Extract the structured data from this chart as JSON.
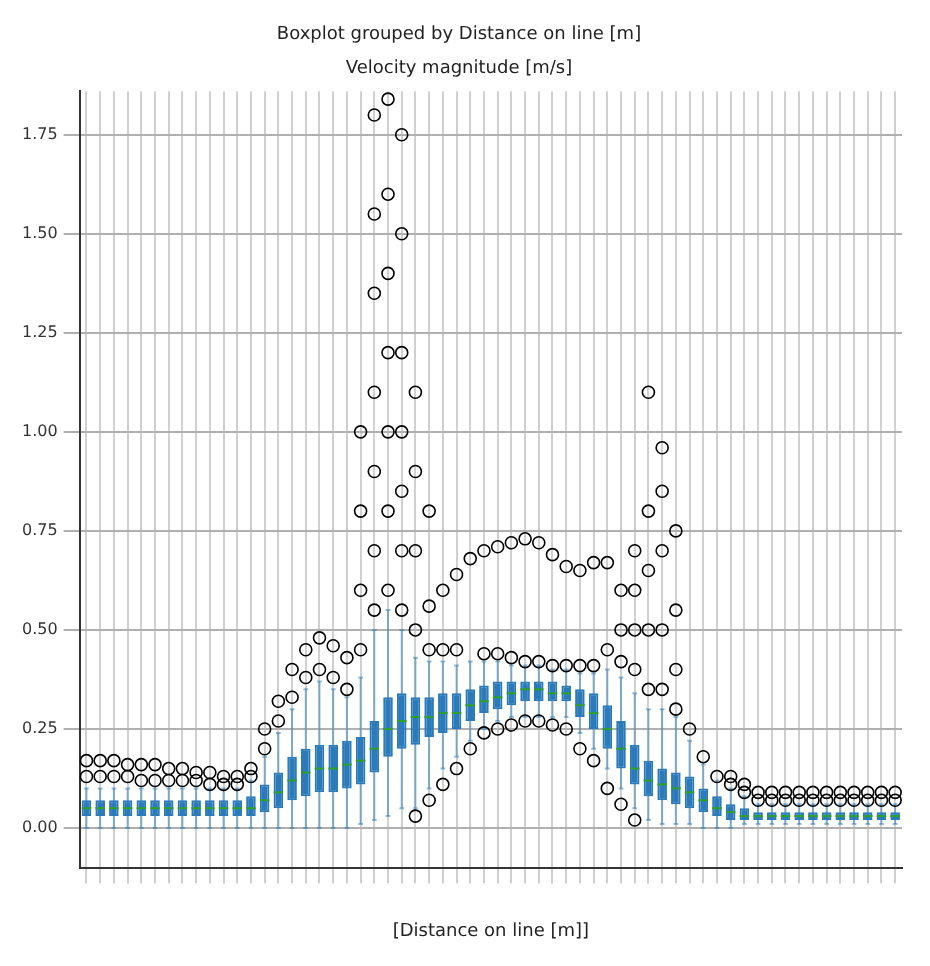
{
  "chart_data": {
    "type": "box",
    "title": "Boxplot grouped by Distance on line [m]",
    "subtitle": "Velocity magnitude [m/s]",
    "xlabel": "[Distance on line [m]]",
    "categories": [
      null,
      null,
      null,
      null,
      null,
      null,
      null,
      null,
      null,
      null,
      null,
      null,
      null,
      null,
      null,
      null,
      null,
      null,
      null,
      null,
      null,
      null,
      null,
      null,
      null,
      null,
      null,
      null,
      null,
      null,
      null,
      null,
      null,
      null,
      null,
      null,
      null,
      null,
      null,
      null,
      null,
      null,
      null,
      null,
      null,
      null,
      null,
      null,
      null,
      null,
      null,
      null,
      null,
      null,
      null,
      null,
      null,
      null,
      null,
      null
    ],
    "ylim": [
      -0.1,
      1.86
    ],
    "yticks": [
      {
        "value": 0,
        "label": "0.00"
      },
      {
        "value": 0.25,
        "label": "0.25"
      },
      {
        "value": 0.5,
        "label": "0.50"
      },
      {
        "value": 0.75,
        "label": "0.75"
      },
      {
        "value": 1,
        "label": "1.00"
      },
      {
        "value": 1.25,
        "label": "1.25"
      },
      {
        "value": 1.5,
        "label": "1.50"
      },
      {
        "value": 1.75,
        "label": "1.75"
      }
    ],
    "grid": true,
    "legend": false,
    "marker": "circle",
    "series": [
      {
        "color": "#2b7bba",
        "boxes": [
          {
            "low": 0,
            "q1": 0.03,
            "median": 0.05,
            "q3": 0.07,
            "high": 0.1,
            "outliers": [
              0.13,
              0.17
            ]
          },
          {
            "low": 0,
            "q1": 0.03,
            "median": 0.05,
            "q3": 0.07,
            "high": 0.1,
            "outliers": [
              0.13,
              0.17
            ]
          },
          {
            "low": 0,
            "q1": 0.03,
            "median": 0.05,
            "q3": 0.07,
            "high": 0.1,
            "outliers": [
              0.13,
              0.17
            ]
          },
          {
            "low": 0,
            "q1": 0.03,
            "median": 0.05,
            "q3": 0.07,
            "high": 0.1,
            "outliers": [
              0.13,
              0.16
            ]
          },
          {
            "low": 0,
            "q1": 0.03,
            "median": 0.05,
            "q3": 0.07,
            "high": 0.1,
            "outliers": [
              0.12,
              0.16
            ]
          },
          {
            "low": 0,
            "q1": 0.03,
            "median": 0.05,
            "q3": 0.07,
            "high": 0.1,
            "outliers": [
              0.12,
              0.16
            ]
          },
          {
            "low": 0,
            "q1": 0.03,
            "median": 0.05,
            "q3": 0.07,
            "high": 0.1,
            "outliers": [
              0.12,
              0.15
            ]
          },
          {
            "low": 0,
            "q1": 0.03,
            "median": 0.05,
            "q3": 0.07,
            "high": 0.1,
            "outliers": [
              0.12,
              0.15
            ]
          },
          {
            "low": 0,
            "q1": 0.03,
            "median": 0.05,
            "q3": 0.07,
            "high": 0.1,
            "outliers": [
              0.12,
              0.14
            ]
          },
          {
            "low": 0,
            "q1": 0.03,
            "median": 0.05,
            "q3": 0.07,
            "high": 0.1,
            "outliers": [
              0.11,
              0.14
            ]
          },
          {
            "low": 0,
            "q1": 0.03,
            "median": 0.05,
            "q3": 0.07,
            "high": 0.1,
            "outliers": [
              0.11,
              0.13
            ]
          },
          {
            "low": 0,
            "q1": 0.03,
            "median": 0.05,
            "q3": 0.07,
            "high": 0.1,
            "outliers": [
              0.11,
              0.13
            ]
          },
          {
            "low": 0,
            "q1": 0.03,
            "median": 0.05,
            "q3": 0.08,
            "high": 0.12,
            "outliers": [
              0.13,
              0.15
            ]
          },
          {
            "low": 0,
            "q1": 0.04,
            "median": 0.07,
            "q3": 0.11,
            "high": 0.18,
            "outliers": [
              0.2,
              0.25
            ]
          },
          {
            "low": 0,
            "q1": 0.05,
            "median": 0.09,
            "q3": 0.14,
            "high": 0.24,
            "outliers": [
              0.27,
              0.32
            ]
          },
          {
            "low": 0,
            "q1": 0.07,
            "median": 0.12,
            "q3": 0.18,
            "high": 0.3,
            "outliers": [
              0.33,
              0.4
            ]
          },
          {
            "low": 0,
            "q1": 0.08,
            "median": 0.14,
            "q3": 0.2,
            "high": 0.35,
            "outliers": [
              0.38,
              0.45
            ]
          },
          {
            "low": 0,
            "q1": 0.09,
            "median": 0.15,
            "q3": 0.21,
            "high": 0.37,
            "outliers": [
              0.4,
              0.48
            ]
          },
          {
            "low": 0,
            "q1": 0.09,
            "median": 0.15,
            "q3": 0.21,
            "high": 0.35,
            "outliers": [
              0.38,
              0.46
            ]
          },
          {
            "low": 0,
            "q1": 0.1,
            "median": 0.16,
            "q3": 0.22,
            "high": 0.33,
            "outliers": [
              0.35,
              0.43
            ]
          },
          {
            "low": 0.01,
            "q1": 0.11,
            "median": 0.17,
            "q3": 0.23,
            "high": 0.38,
            "outliers": [
              0.45,
              0.6,
              0.8,
              1.0
            ]
          },
          {
            "low": 0.02,
            "q1": 0.14,
            "median": 0.2,
            "q3": 0.27,
            "high": 0.5,
            "outliers": [
              0.55,
              0.7,
              0.9,
              1.1,
              1.35,
              1.55,
              1.8
            ]
          },
          {
            "low": 0.03,
            "q1": 0.18,
            "median": 0.25,
            "q3": 0.33,
            "high": 0.55,
            "outliers": [
              0.6,
              0.8,
              1.0,
              1.2,
              1.4,
              1.6,
              1.84
            ]
          },
          {
            "low": 0.05,
            "q1": 0.2,
            "median": 0.27,
            "q3": 0.34,
            "high": 0.5,
            "outliers": [
              0.55,
              0.7,
              0.85,
              1.0,
              1.2,
              1.5,
              1.75
            ]
          },
          {
            "low": 0.05,
            "q1": 0.21,
            "median": 0.28,
            "q3": 0.33,
            "high": 0.43,
            "outliers": [
              0.03,
              0.5,
              0.7,
              0.9,
              1.1
            ]
          },
          {
            "low": 0.1,
            "q1": 0.23,
            "median": 0.28,
            "q3": 0.33,
            "high": 0.42,
            "outliers": [
              0.07,
              0.45,
              0.56,
              0.8
            ]
          },
          {
            "low": 0.15,
            "q1": 0.24,
            "median": 0.29,
            "q3": 0.34,
            "high": 0.42,
            "outliers": [
              0.11,
              0.45,
              0.6
            ]
          },
          {
            "low": 0.18,
            "q1": 0.25,
            "median": 0.29,
            "q3": 0.34,
            "high": 0.41,
            "outliers": [
              0.15,
              0.45,
              0.64
            ]
          },
          {
            "low": 0.22,
            "q1": 0.27,
            "median": 0.31,
            "q3": 0.35,
            "high": 0.42,
            "outliers": [
              0.2,
              0.68
            ]
          },
          {
            "low": 0.25,
            "q1": 0.29,
            "median": 0.32,
            "q3": 0.36,
            "high": 0.42,
            "outliers": [
              0.24,
              0.44,
              0.7
            ]
          },
          {
            "low": 0.27,
            "q1": 0.3,
            "median": 0.33,
            "q3": 0.37,
            "high": 0.42,
            "outliers": [
              0.25,
              0.44,
              0.71
            ]
          },
          {
            "low": 0.28,
            "q1": 0.31,
            "median": 0.34,
            "q3": 0.37,
            "high": 0.41,
            "outliers": [
              0.26,
              0.43,
              0.72
            ]
          },
          {
            "low": 0.28,
            "q1": 0.32,
            "median": 0.35,
            "q3": 0.37,
            "high": 0.41,
            "outliers": [
              0.27,
              0.42,
              0.73
            ]
          },
          {
            "low": 0.28,
            "q1": 0.32,
            "median": 0.35,
            "q3": 0.37,
            "high": 0.41,
            "outliers": [
              0.27,
              0.42,
              0.72
            ]
          },
          {
            "low": 0.28,
            "q1": 0.32,
            "median": 0.34,
            "q3": 0.37,
            "high": 0.4,
            "outliers": [
              0.26,
              0.41,
              0.69
            ]
          },
          {
            "low": 0.28,
            "q1": 0.32,
            "median": 0.34,
            "q3": 0.36,
            "high": 0.4,
            "outliers": [
              0.25,
              0.41,
              0.66
            ]
          },
          {
            "low": 0.24,
            "q1": 0.28,
            "median": 0.31,
            "q3": 0.35,
            "high": 0.39,
            "outliers": [
              0.2,
              0.41,
              0.65
            ]
          },
          {
            "low": 0.2,
            "q1": 0.25,
            "median": 0.29,
            "q3": 0.34,
            "high": 0.39,
            "outliers": [
              0.17,
              0.41,
              0.67
            ]
          },
          {
            "low": 0.15,
            "q1": 0.2,
            "median": 0.25,
            "q3": 0.31,
            "high": 0.4,
            "outliers": [
              0.1,
              0.45,
              0.67
            ]
          },
          {
            "low": 0.1,
            "q1": 0.15,
            "median": 0.2,
            "q3": 0.27,
            "high": 0.38,
            "outliers": [
              0.06,
              0.42,
              0.5,
              0.6
            ]
          },
          {
            "low": 0.05,
            "q1": 0.11,
            "median": 0.15,
            "q3": 0.21,
            "high": 0.34,
            "outliers": [
              0.02,
              0.4,
              0.5,
              0.6,
              0.7
            ]
          },
          {
            "low": 0.02,
            "q1": 0.08,
            "median": 0.12,
            "q3": 0.17,
            "high": 0.3,
            "outliers": [
              0.35,
              0.5,
              0.65,
              0.8,
              1.1
            ]
          },
          {
            "low": 0.01,
            "q1": 0.07,
            "median": 0.11,
            "q3": 0.15,
            "high": 0.3,
            "outliers": [
              0.35,
              0.5,
              0.7,
              0.85,
              0.96
            ]
          },
          {
            "low": 0.01,
            "q1": 0.06,
            "median": 0.1,
            "q3": 0.14,
            "high": 0.28,
            "outliers": [
              0.3,
              0.4,
              0.55,
              0.75
            ]
          },
          {
            "low": 0.01,
            "q1": 0.05,
            "median": 0.09,
            "q3": 0.13,
            "high": 0.22,
            "outliers": [
              0.25
            ]
          },
          {
            "low": 0,
            "q1": 0.04,
            "median": 0.07,
            "q3": 0.1,
            "high": 0.16,
            "outliers": [
              0.18
            ]
          },
          {
            "low": 0,
            "q1": 0.03,
            "median": 0.05,
            "q3": 0.08,
            "high": 0.12,
            "outliers": [
              0.13
            ]
          },
          {
            "low": 0,
            "q1": 0.02,
            "median": 0.04,
            "q3": 0.06,
            "high": 0.1,
            "outliers": [
              0.11,
              0.13
            ]
          },
          {
            "low": 0.01,
            "q1": 0.02,
            "median": 0.03,
            "q3": 0.05,
            "high": 0.08,
            "outliers": [
              0.09,
              0.11
            ]
          },
          {
            "low": 0.01,
            "q1": 0.02,
            "median": 0.03,
            "q3": 0.04,
            "high": 0.06,
            "outliers": [
              0.07,
              0.09
            ]
          },
          {
            "low": 0.01,
            "q1": 0.02,
            "median": 0.03,
            "q3": 0.04,
            "high": 0.06,
            "outliers": [
              0.07,
              0.09
            ]
          },
          {
            "low": 0.01,
            "q1": 0.02,
            "median": 0.03,
            "q3": 0.04,
            "high": 0.06,
            "outliers": [
              0.07,
              0.09
            ]
          },
          {
            "low": 0.01,
            "q1": 0.02,
            "median": 0.03,
            "q3": 0.04,
            "high": 0.06,
            "outliers": [
              0.07,
              0.09
            ]
          },
          {
            "low": 0.01,
            "q1": 0.02,
            "median": 0.03,
            "q3": 0.04,
            "high": 0.06,
            "outliers": [
              0.07,
              0.09
            ]
          },
          {
            "low": 0.01,
            "q1": 0.02,
            "median": 0.03,
            "q3": 0.04,
            "high": 0.06,
            "outliers": [
              0.07,
              0.09
            ]
          },
          {
            "low": 0.01,
            "q1": 0.02,
            "median": 0.03,
            "q3": 0.04,
            "high": 0.06,
            "outliers": [
              0.07,
              0.09
            ]
          },
          {
            "low": 0.01,
            "q1": 0.02,
            "median": 0.03,
            "q3": 0.04,
            "high": 0.06,
            "outliers": [
              0.07,
              0.09
            ]
          },
          {
            "low": 0.01,
            "q1": 0.02,
            "median": 0.03,
            "q3": 0.04,
            "high": 0.06,
            "outliers": [
              0.07,
              0.09
            ]
          },
          {
            "low": 0.01,
            "q1": 0.02,
            "median": 0.03,
            "q3": 0.04,
            "high": 0.06,
            "outliers": [
              0.07,
              0.09
            ]
          },
          {
            "low": 0.01,
            "q1": 0.02,
            "median": 0.03,
            "q3": 0.04,
            "high": 0.06,
            "outliers": [
              0.07,
              0.09
            ]
          }
        ]
      }
    ]
  }
}
